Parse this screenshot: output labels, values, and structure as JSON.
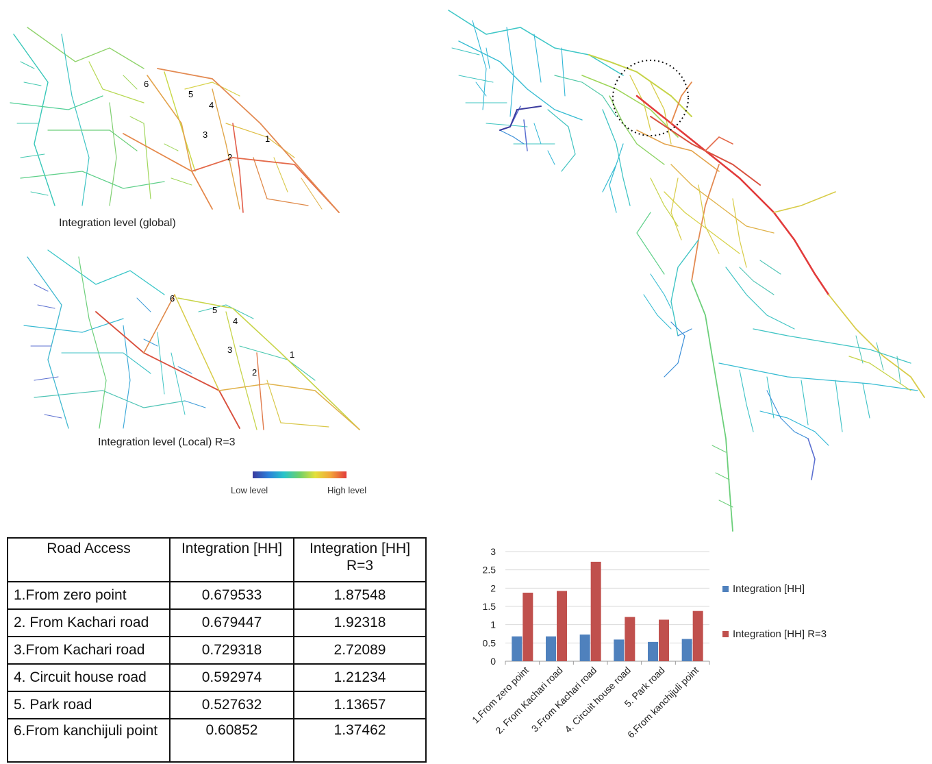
{
  "maps": {
    "global_caption": "Integration level (global)",
    "local_caption": "Integration level (Local) R=3",
    "global_markers": [
      "6",
      "5",
      "4",
      "3",
      "2",
      "1"
    ],
    "local_markers": [
      "6",
      "5",
      "4",
      "3",
      "2",
      "1"
    ],
    "legend": {
      "low": "Low level",
      "high": "High level"
    }
  },
  "colors": {
    "series_hh": "#4f81bd",
    "series_r3": "#c0504d",
    "road_low": "#3b3b9e",
    "road_mid": "#27c4c9",
    "road_high": "#e23b3b"
  },
  "table": {
    "headers": [
      "Road Access",
      "Integration [HH]",
      "Integration [HH] R=3"
    ],
    "rows": [
      [
        "1.From zero point",
        "0.679533",
        "1.87548"
      ],
      [
        "2. From Kachari road",
        "0.679447",
        "1.92318"
      ],
      [
        "3.From Kachari road",
        "0.729318",
        "2.72089"
      ],
      [
        "4. Circuit house road",
        "0.592974",
        "1.21234"
      ],
      [
        "5. Park road",
        "0.527632",
        "1.13657"
      ],
      [
        "6.From kanchijuli point",
        "0.60852",
        "1.37462"
      ]
    ]
  },
  "chart_data": {
    "type": "bar",
    "categories": [
      "1.From zero point",
      "2. From Kachari road",
      "3.From Kachari road",
      "4. Circuit house road",
      "5. Park road",
      "6.From kanchijuli point"
    ],
    "series": [
      {
        "name": "Integration [HH]",
        "values": [
          0.679533,
          0.679447,
          0.729318,
          0.592974,
          0.527632,
          0.60852
        ]
      },
      {
        "name": "Integration [HH] R=3",
        "values": [
          1.87548,
          1.92318,
          2.72089,
          1.21234,
          1.13657,
          1.37462
        ]
      }
    ],
    "yticks": [
      "0",
      "0.5",
      "1",
      "1.5",
      "2",
      "2.5",
      "3"
    ],
    "ylim": [
      0,
      3
    ],
    "grid": true,
    "legend_position": "right"
  }
}
